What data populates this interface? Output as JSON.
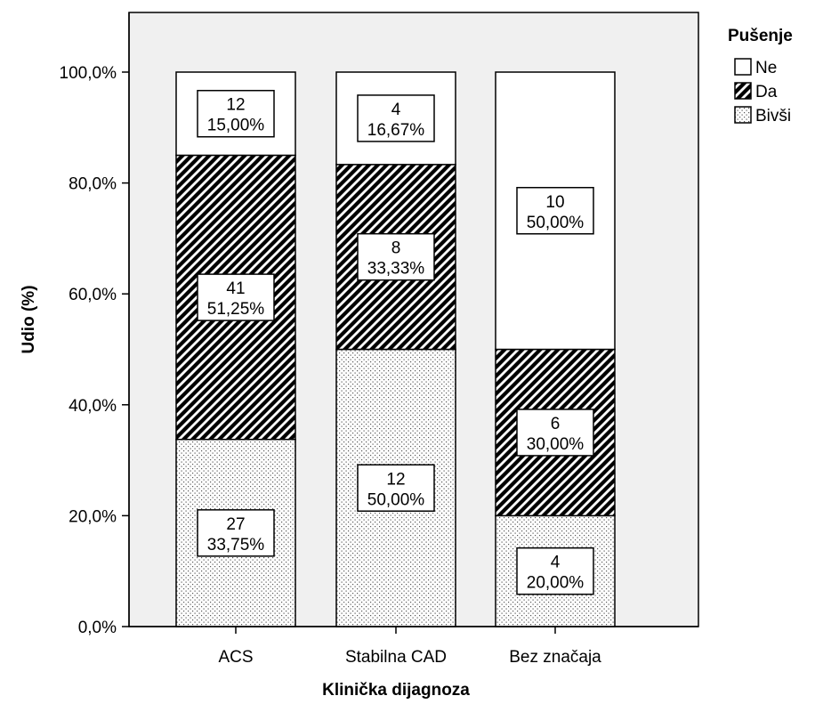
{
  "chart_data": {
    "type": "bar",
    "stacked": true,
    "percent": true,
    "xlabel": "Klinička dijagnoza",
    "ylabel": "Udio (%)",
    "ylim": [
      0,
      100
    ],
    "yticks": [
      "0,0%",
      "20,0%",
      "40,0%",
      "60,0%",
      "80,0%",
      "100,0%"
    ],
    "categories": [
      "ACS",
      "Stabilna CAD",
      "Bez značaja"
    ],
    "legend": {
      "title": "Pušenje",
      "placement": "top-right"
    },
    "series": [
      {
        "name": "Bivši",
        "pattern": "dots",
        "counts": [
          27,
          12,
          4
        ],
        "values": [
          33.75,
          50.0,
          20.0
        ],
        "labels": [
          "33,75%",
          "50,00%",
          "20,00%"
        ]
      },
      {
        "name": "Da",
        "pattern": "hatch",
        "counts": [
          41,
          8,
          6
        ],
        "values": [
          51.25,
          33.33,
          30.0
        ],
        "labels": [
          "51,25%",
          "33,33%",
          "30,00%"
        ]
      },
      {
        "name": "Ne",
        "pattern": "none",
        "counts": [
          12,
          4,
          10
        ],
        "values": [
          15.0,
          16.67,
          50.0
        ],
        "labels": [
          "15,00%",
          "16,67%",
          "50,00%"
        ]
      }
    ],
    "legend_order": [
      "Ne",
      "Da",
      "Bivši"
    ],
    "colors": {
      "panel": "#f0f0f0",
      "bar_fill": "#ffffff",
      "ink": "#000000"
    }
  }
}
